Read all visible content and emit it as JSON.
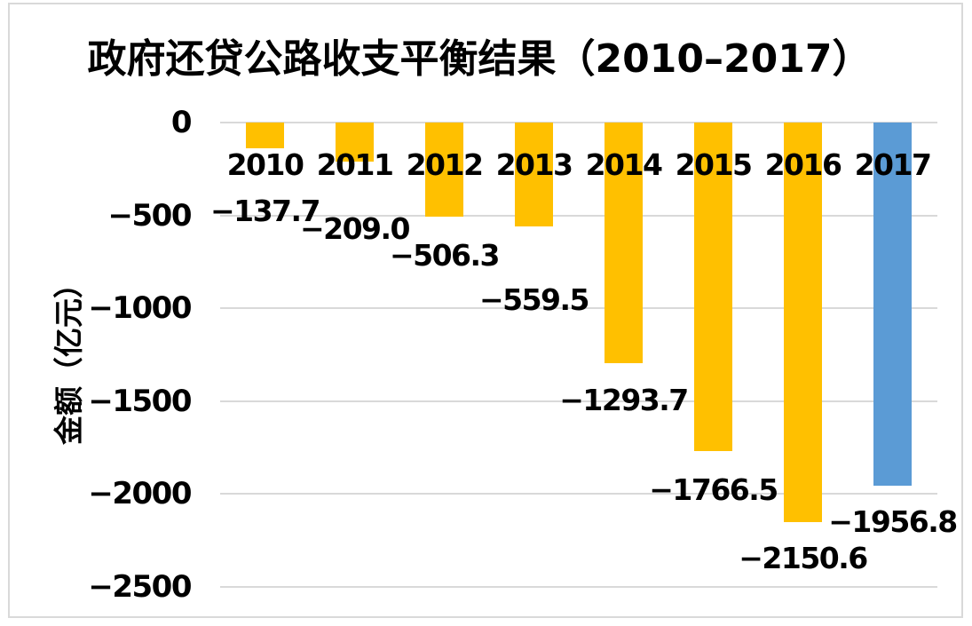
{
  "chart_data": {
    "type": "bar",
    "title": "政府还贷公路收支平衡结果（2010–2017）",
    "ylabel": "金额（亿元）",
    "xlabel": "",
    "categories": [
      "2010",
      "2011",
      "2012",
      "2013",
      "2014",
      "2015",
      "2016",
      "2017"
    ],
    "values": [
      -137.7,
      -209.0,
      -506.3,
      -559.5,
      -1293.7,
      -1766.5,
      -2150.6,
      -1956.8
    ],
    "data_labels": [
      "−137.7",
      "−209.0",
      "−506.3",
      "−559.5",
      "−1293.7",
      "−1766.5",
      "−2150.6",
      "−1956.8"
    ],
    "bar_colors": [
      "#FFC000",
      "#FFC000",
      "#FFC000",
      "#FFC000",
      "#FFC000",
      "#FFC000",
      "#FFC000",
      "#5B9BD5"
    ],
    "ylim": [
      -2500,
      0
    ],
    "yticks": [
      0,
      -500,
      -1000,
      -1500,
      -2000,
      -2500
    ],
    "ytick_labels": [
      "0",
      "−500",
      "−1000",
      "−1500",
      "−2000",
      "−2500"
    ],
    "grid": "horizontal",
    "legend": "none",
    "colors": {
      "bar_default": "#FFC000",
      "bar_highlight": "#5B9BD5",
      "gridline": "#D9D9D9",
      "text": "#000000",
      "frame_border": "#D9D9D9"
    }
  }
}
